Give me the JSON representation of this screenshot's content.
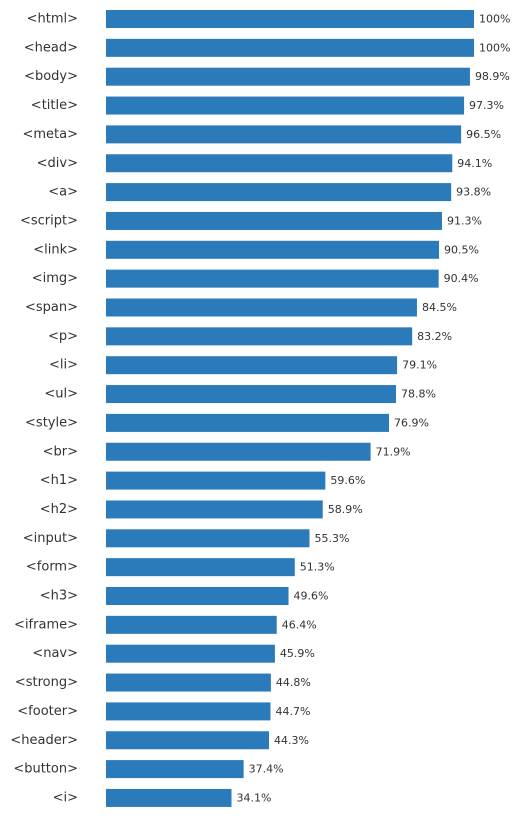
{
  "chart_data": {
    "type": "bar",
    "orientation": "horizontal",
    "bar_color": "#2b7bba",
    "categories": [
      "<html>",
      "<head>",
      "<body>",
      "<title>",
      "<meta>",
      "<div>",
      "<a>",
      "<script>",
      "<link>",
      "<img>",
      "<span>",
      "<p>",
      "<li>",
      "<ul>",
      "<style>",
      "<br>",
      "<h1>",
      "<h2>",
      "<input>",
      "<form>",
      "<h3>",
      "<iframe>",
      "<nav>",
      "<strong>",
      "<footer>",
      "<header>",
      "<button>",
      "<i>"
    ],
    "values": [
      100,
      100,
      98.9,
      97.3,
      96.5,
      94.1,
      93.8,
      91.3,
      90.5,
      90.4,
      84.5,
      83.2,
      79.1,
      78.8,
      76.9,
      71.9,
      59.6,
      58.9,
      55.3,
      51.3,
      49.6,
      46.4,
      45.9,
      44.8,
      44.7,
      44.3,
      37.4,
      34.1
    ],
    "value_labels": [
      "100%",
      "100%",
      "98.9%",
      "97.3%",
      "96.5%",
      "94.1%",
      "93.8%",
      "91.3%",
      "90.5%",
      "90.4%",
      "84.5%",
      "83.2%",
      "79.1%",
      "78.8%",
      "76.9%",
      "71.9%",
      "59.6%",
      "58.9%",
      "55.3%",
      "51.3%",
      "49.6%",
      "46.4%",
      "45.9%",
      "44.8%",
      "44.7%",
      "44.3%",
      "37.4%",
      "34.1%"
    ],
    "xlim": [
      0,
      100
    ],
    "grid": false,
    "title": "",
    "xlabel": "",
    "ylabel": ""
  }
}
